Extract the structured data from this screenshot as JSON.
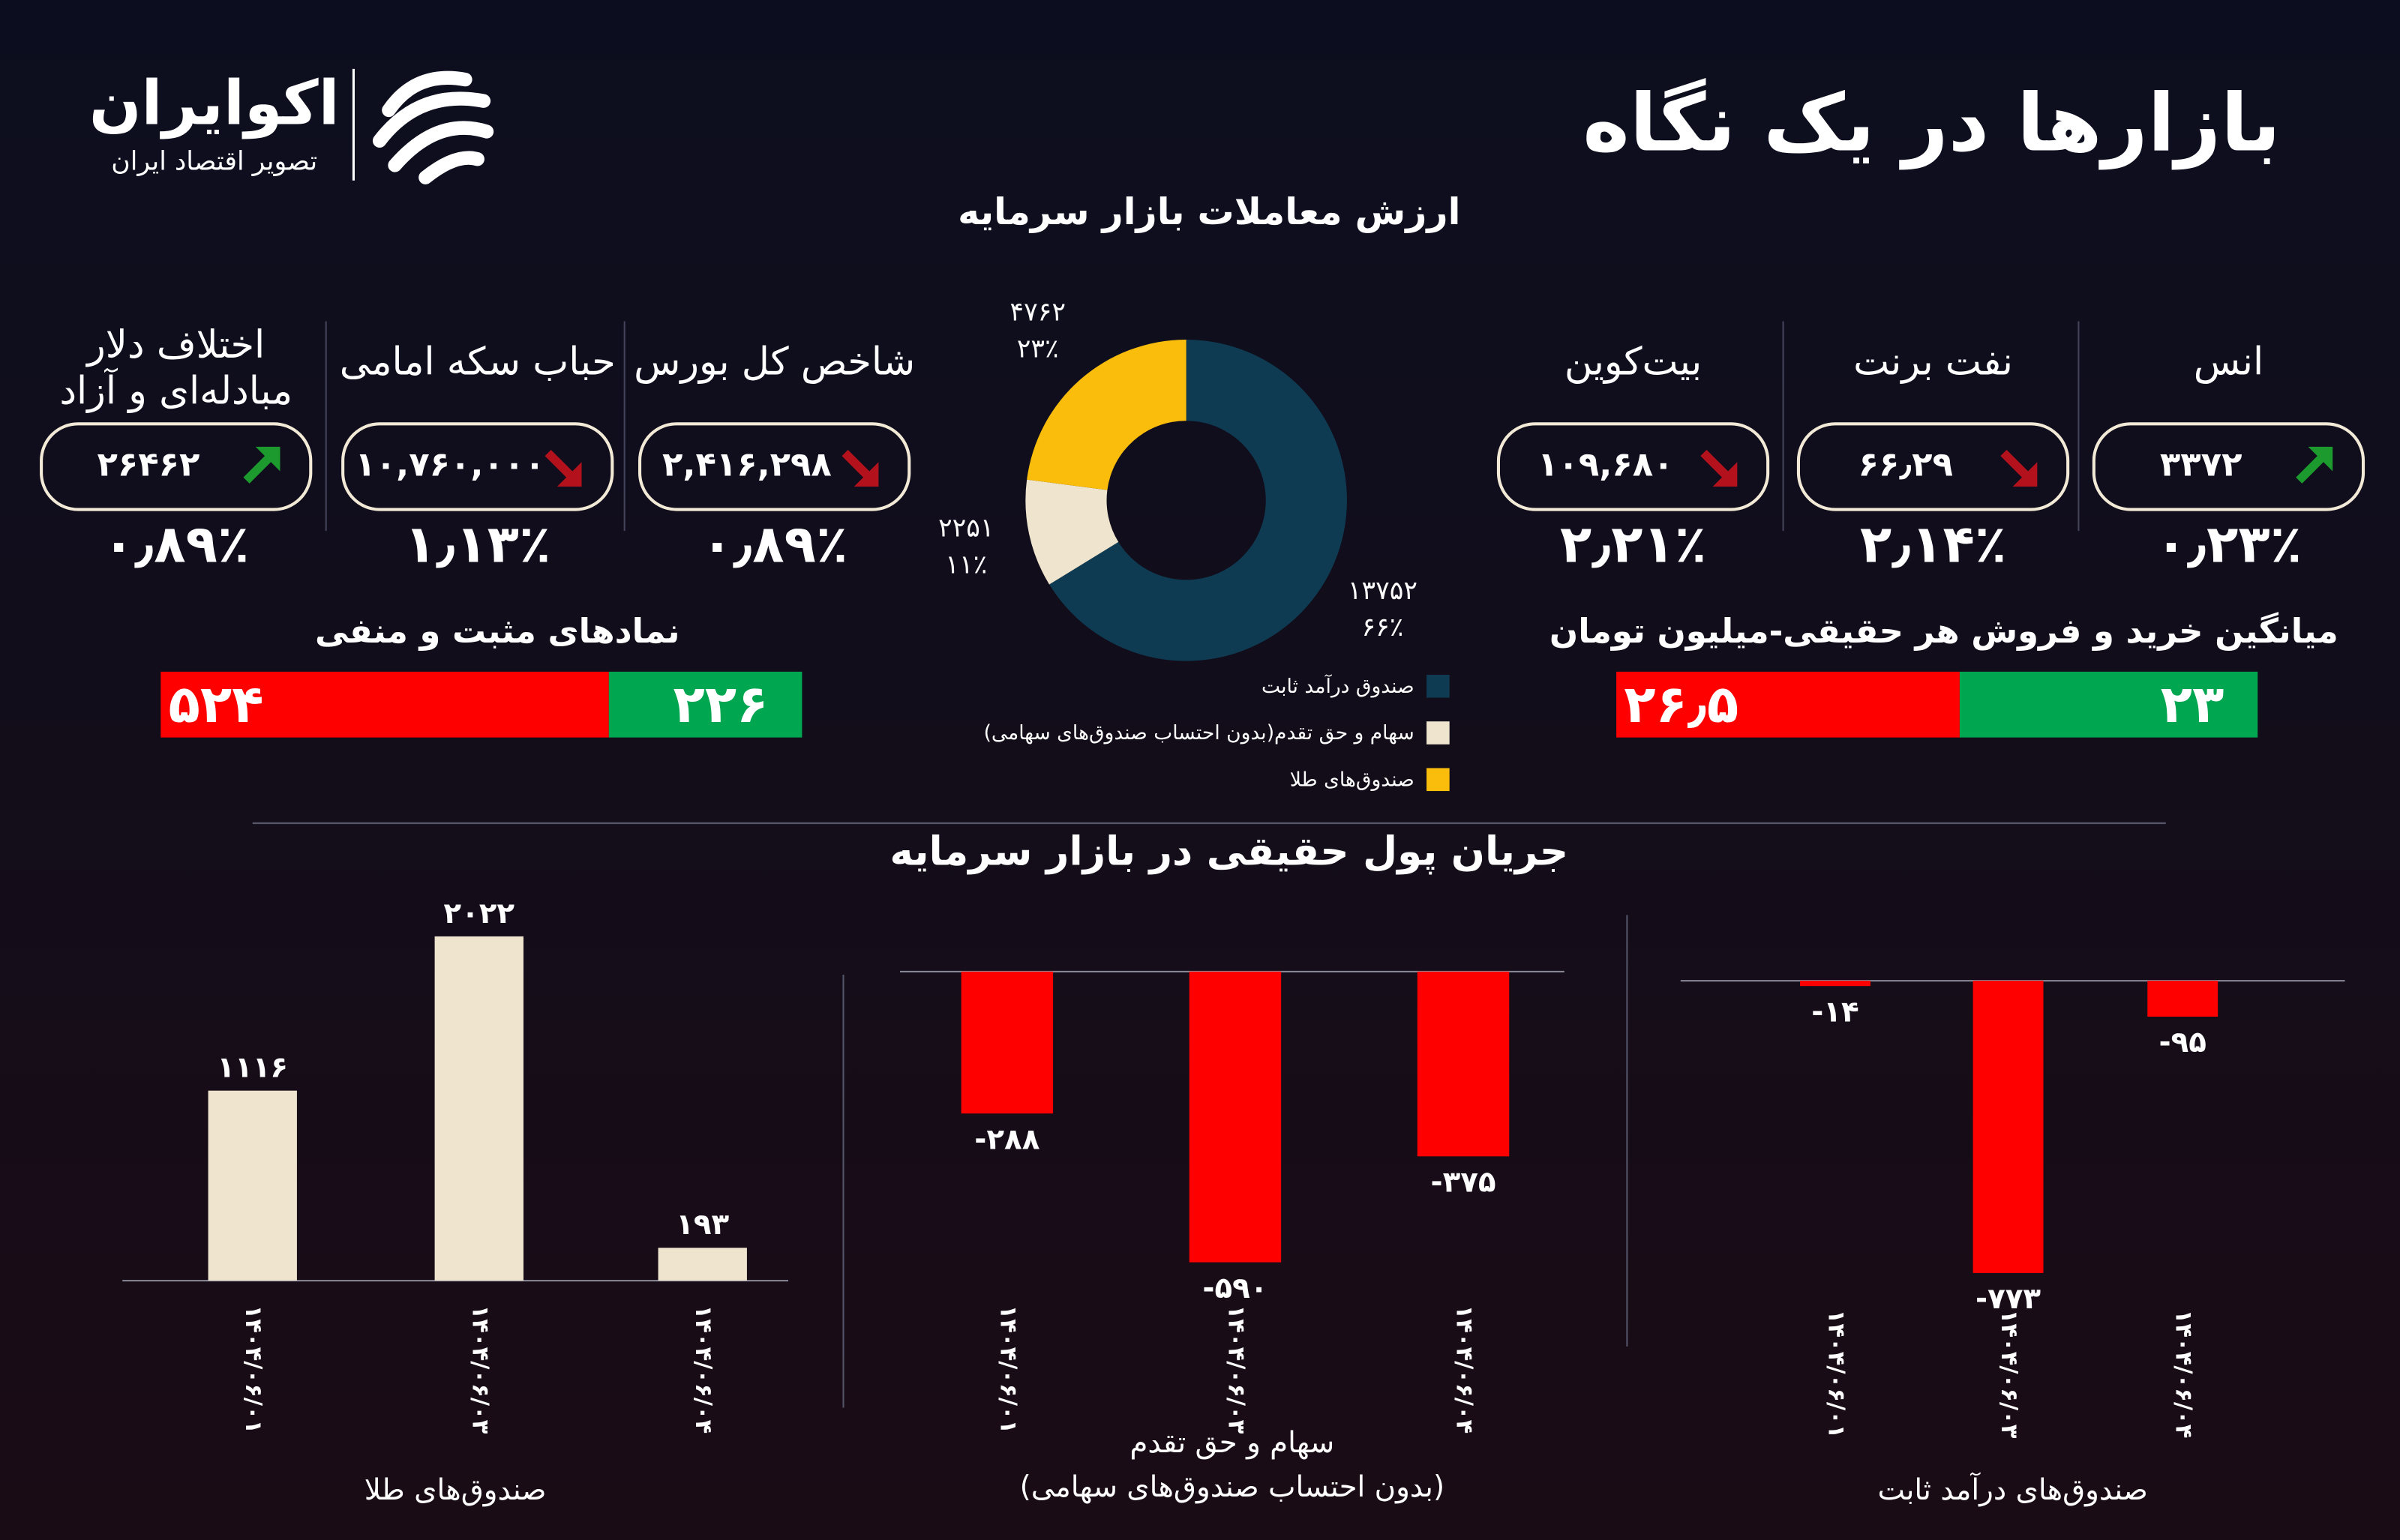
{
  "header": {
    "title": "بازارها در یک نگاه",
    "logo": "اکوایران",
    "logo_subtitle": "تصویر اقتصاد ایران"
  },
  "tickers": [
    {
      "name": [
        "انس"
      ],
      "value": "۳۳۷۲",
      "change": "۰٫۲۳٪",
      "direction": "up"
    },
    {
      "name": [
        "نفت برنت"
      ],
      "value": "۶۶٫۲۹",
      "change": "۲٫۱۴٪",
      "direction": "down"
    },
    {
      "name": [
        "بیت‌کوین"
      ],
      "value": "۱۰۹,۶۸۰",
      "change": "۲٫۲۱٪",
      "direction": "down"
    },
    {
      "name": [
        "شاخص کل بورس"
      ],
      "value": "۲,۴۱۶,۲۹۸",
      "change": "۰٫۸۹٪",
      "direction": "down"
    },
    {
      "name": [
        "حباب سکه امامی"
      ],
      "value": "۱۰,۷۶۰,۰۰۰",
      "change": "۱٫۱۳٪",
      "direction": "down"
    },
    {
      "name": [
        "اختلاف دلار",
        "مبادله‌ای و آزاد"
      ],
      "value": "۲۶۴۶۲",
      "change": "۰٫۸۹٪",
      "direction": "up"
    }
  ],
  "section_title": "جریان پول حقیقی در بازار سرمایه",
  "chart_data": [
    {
      "type": "pie",
      "title": "ارزش معاملات  بازار سرمایه",
      "donut": true,
      "categories": [
        "صندوق درآمد ثابت",
        "سهام و حق تقدم(بدون احتساب صندوق‌های سهامی)",
        "صندوق‌های طلا"
      ],
      "values": [
        13752,
        2251,
        4762
      ],
      "value_labels": [
        "۱۳۷۵۲",
        "۲۲۵۱",
        "۴۷۶۲"
      ],
      "percent_labels": [
        "۶۶٪",
        "۱۱٪",
        "۲۳٪"
      ],
      "colors": [
        "#0f3b52",
        "#efe5cf",
        "#fbbd0b"
      ]
    },
    {
      "type": "bar",
      "orientation": "horizontal",
      "stacked": true,
      "title": "نمادهای مثبت و منفی",
      "series": [
        {
          "color": "#00a650",
          "values": [
            226
          ],
          "value_labels": [
            "۲۲۶"
          ]
        },
        {
          "color": "#ff0000",
          "values": [
            524
          ],
          "value_labels": [
            "۵۲۴"
          ]
        }
      ]
    },
    {
      "type": "bar",
      "orientation": "horizontal",
      "stacked": true,
      "title": "میانگین خرید و فروش هر حقیقی-میلیون تومان",
      "series": [
        {
          "color": "#00a650",
          "values": [
            23
          ],
          "value_labels": [
            "۲۳"
          ]
        },
        {
          "color": "#ff0000",
          "values": [
            26.5
          ],
          "value_labels": [
            "۲۶٫۵"
          ]
        }
      ]
    },
    {
      "type": "bar",
      "title": "صندوق‌های طلا",
      "color": "#efe5cf",
      "categories": [
        "۱۴۰۴/۰۶/۰۱",
        "۱۴۰۴/۰۶/۰۳",
        "۱۴۰۴/۰۶/۰۴"
      ],
      "values": [
        1116,
        2022,
        193
      ],
      "value_labels": [
        "۱۱۱۶",
        "۲۰۲۲",
        "۱۹۳"
      ]
    },
    {
      "type": "bar",
      "title": "سهام و حق تقدم",
      "subtitle": "(بدون احتساب صندوق‌های سهامی)",
      "color": "#ff0000",
      "categories": [
        "۱۴۰۴/۰۶/۰۱",
        "۱۴۰۴/۰۶/۰۳",
        "۱۴۰۴/۰۶/۰۴"
      ],
      "values": [
        -288,
        -590,
        -375
      ],
      "value_labels": [
        "-۲۸۸",
        "-۵۹۰",
        "-۳۷۵"
      ]
    },
    {
      "type": "bar",
      "title": "صندوق‌های درآمد ثابت",
      "color": "#ff0000",
      "categories": [
        "۱۴۰۴/۰۶/۰۱",
        "۱۴۰۴/۰۶/۰۳",
        "۱۴۰۴/۰۶/۰۴"
      ],
      "values": [
        -14,
        -773,
        -95
      ],
      "value_labels": [
        "-۱۴",
        "-۷۷۳",
        "-۹۵"
      ]
    }
  ]
}
